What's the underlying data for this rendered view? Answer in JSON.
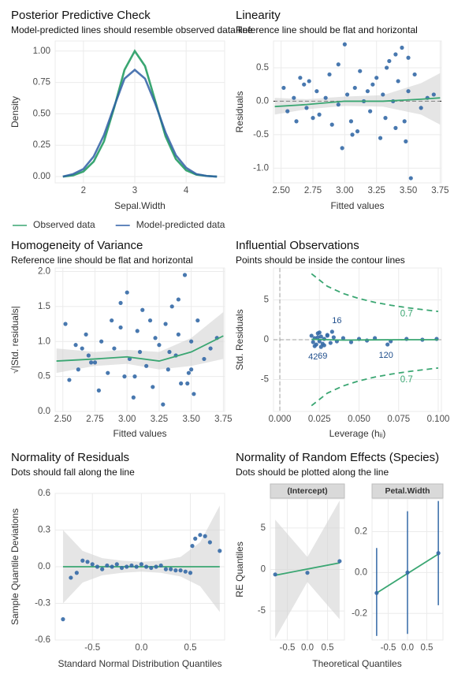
{
  "chart_data": [
    {
      "type": "line",
      "title": "Posterior Predictive Check",
      "subtitle": "Model-predicted lines should resemble observed data line",
      "x_label": "Sepal.Width",
      "y_label": "Density",
      "legend": "bottom",
      "grid": true,
      "xlim": [
        1.45,
        4.75
      ],
      "xticks": [
        2,
        3,
        4
      ],
      "ylim": [
        -0.05,
        1.08
      ],
      "yticks": [
        {
          "value": 0,
          "label": "0.00"
        },
        {
          "value": 0.25,
          "label": "0.25"
        },
        {
          "value": 0.5,
          "label": "0.50"
        },
        {
          "value": 0.75,
          "label": "0.75"
        },
        {
          "value": 1,
          "label": "1.00"
        }
      ],
      "x": [
        1.6,
        1.8,
        2.0,
        2.2,
        2.4,
        2.6,
        2.8,
        3.0,
        3.2,
        3.4,
        3.6,
        3.8,
        4.0,
        4.2,
        4.4,
        4.6
      ],
      "series": [
        {
          "name": "Observed data",
          "type": "line",
          "color": "#3aa672",
          "values": [
            0.0,
            0.01,
            0.04,
            0.12,
            0.28,
            0.55,
            0.85,
            1.0,
            0.88,
            0.6,
            0.32,
            0.14,
            0.05,
            0.015,
            0.005,
            0.0
          ]
        },
        {
          "name": "Model-predicted data",
          "type": "line",
          "color": "#2f5fa5",
          "values": [
            0.0,
            0.02,
            0.06,
            0.16,
            0.33,
            0.56,
            0.78,
            0.85,
            0.78,
            0.58,
            0.35,
            0.17,
            0.07,
            0.02,
            0.005,
            0.0
          ]
        }
      ]
    },
    {
      "type": "scatter",
      "title": "Linearity",
      "subtitle": "Reference line should be flat and horizontal",
      "x_label": "Fitted values",
      "y_label": "Residuals",
      "grid": true,
      "xlim": [
        2.44,
        3.76
      ],
      "xticks": [
        {
          "value": 2.5,
          "label": "2.50"
        },
        2.75,
        {
          "value": 3,
          "label": "3.00"
        },
        3.25,
        {
          "value": 3.5,
          "label": "3.50"
        },
        3.75
      ],
      "ylim": [
        -1.22,
        0.9
      ],
      "yticks": [
        {
          "value": -1,
          "label": "-1.0"
        },
        -0.5,
        {
          "value": 0,
          "label": "0.0"
        },
        0.5
      ],
      "ref_lines": [
        {
          "axis": "y",
          "value": 0,
          "color": "#000000"
        }
      ],
      "series": [
        {
          "type": "band",
          "color": "#d4d4d4",
          "x": [
            2.45,
            2.7,
            3.0,
            3.3,
            3.6,
            3.75
          ],
          "lower": [
            -0.2,
            -0.12,
            -0.07,
            -0.08,
            -0.2,
            -0.35
          ],
          "upper": [
            0.05,
            0.03,
            0.07,
            0.09,
            0.27,
            0.42
          ]
        },
        {
          "type": "points",
          "color": "#3469a6",
          "x": [
            2.52,
            2.55,
            2.6,
            2.62,
            2.68,
            2.7,
            2.72,
            2.78,
            2.8,
            2.85,
            2.88,
            2.9,
            2.95,
            2.98,
            3.0,
            3.02,
            3.05,
            3.08,
            3.1,
            3.12,
            3.15,
            3.2,
            3.22,
            3.25,
            3.28,
            3.3,
            3.32,
            3.35,
            3.38,
            3.4,
            3.42,
            3.45,
            3.48,
            3.5,
            3.52,
            3.55,
            3.6,
            3.65,
            3.7,
            2.95,
            3.06,
            3.4,
            3.33,
            3.47,
            2.75,
            2.65,
            3.18,
            3.5
          ],
          "values": [
            0.2,
            -0.15,
            0.05,
            -0.3,
            0.25,
            -0.1,
            0.3,
            0.15,
            -0.2,
            0.05,
            0.4,
            -0.35,
            0.55,
            -0.7,
            0.85,
            0.1,
            -0.3,
            0.2,
            -0.45,
            0.45,
            0.0,
            -0.15,
            0.25,
            0.35,
            -0.55,
            0.1,
            -0.25,
            0.6,
            0.0,
            -0.4,
            0.3,
            0.8,
            -0.6,
            0.15,
            -1.15,
            0.4,
            -0.1,
            0.05,
            0.1,
            -0.05,
            -0.5,
            0.7,
            0.5,
            -0.3,
            -0.25,
            0.35,
            0.15,
            0.65
          ]
        },
        {
          "type": "line",
          "color": "#3aa672",
          "x": [
            2.45,
            2.7,
            3.0,
            3.3,
            3.6,
            3.75
          ],
          "values": [
            -0.08,
            -0.05,
            0.0,
            0.0,
            0.03,
            0.05
          ]
        }
      ]
    },
    {
      "type": "scatter",
      "title": "Homogeneity of Variance",
      "subtitle": "Reference line should be flat and horizontal",
      "x_label": "Fitted values",
      "y_label": "√|Std. residuals|",
      "grid": true,
      "xlim": [
        2.44,
        3.76
      ],
      "xticks": [
        {
          "value": 2.5,
          "label": "2.50"
        },
        2.75,
        {
          "value": 3,
          "label": "3.00"
        },
        3.25,
        {
          "value": 3.5,
          "label": "3.50"
        },
        3.75
      ],
      "ylim": [
        0,
        2.05
      ],
      "yticks": [
        {
          "value": 0,
          "label": "0.0"
        },
        0.5,
        {
          "value": 1,
          "label": "1.0"
        },
        1.5,
        {
          "value": 2,
          "label": "2.0"
        }
      ],
      "series": [
        {
          "type": "band",
          "color": "#d4d4d4",
          "x": [
            2.45,
            2.75,
            3.0,
            3.25,
            3.5,
            3.75
          ],
          "lower": [
            0.55,
            0.65,
            0.68,
            0.6,
            0.65,
            0.75
          ],
          "upper": [
            0.9,
            0.85,
            0.88,
            0.85,
            1.05,
            1.42
          ]
        },
        {
          "type": "points",
          "color": "#3469a6",
          "x": [
            2.52,
            2.55,
            2.6,
            2.62,
            2.68,
            2.7,
            2.72,
            2.78,
            2.8,
            2.85,
            2.88,
            2.9,
            2.95,
            2.98,
            3.0,
            3.02,
            3.05,
            3.08,
            3.1,
            3.12,
            3.15,
            3.2,
            3.22,
            3.25,
            3.28,
            3.3,
            3.32,
            3.35,
            3.38,
            3.4,
            3.42,
            3.45,
            3.48,
            3.5,
            3.52,
            3.55,
            3.6,
            3.65,
            3.7,
            2.95,
            3.06,
            3.4,
            3.33,
            3.47,
            2.75,
            2.65,
            3.18,
            3.5
          ],
          "values": [
            1.25,
            0.45,
            0.95,
            0.6,
            1.1,
            0.8,
            0.7,
            0.3,
            1.0,
            0.55,
            1.3,
            0.9,
            1.55,
            0.5,
            1.7,
            0.75,
            0.2,
            1.15,
            0.85,
            1.45,
            0.65,
            0.35,
            1.05,
            0.95,
            0.1,
            1.25,
            0.6,
            1.5,
            0.8,
            1.1,
            0.4,
            1.95,
            0.55,
            1.0,
            0.25,
            1.3,
            0.75,
            0.9,
            1.05,
            1.2,
            0.5,
            1.6,
            0.85,
            0.4,
            0.7,
            0.9,
            1.3,
            0.6
          ]
        },
        {
          "type": "line",
          "color": "#3aa672",
          "x": [
            2.45,
            2.75,
            3.0,
            3.25,
            3.5,
            3.75
          ],
          "values": [
            0.72,
            0.75,
            0.78,
            0.72,
            0.85,
            1.08
          ]
        }
      ]
    },
    {
      "type": "scatter",
      "title": "Influential Observations",
      "subtitle": "Points should be inside the contour lines",
      "x_label": "Leverage (hᵢᵢ)",
      "y_label": "Std. Residuals",
      "grid": true,
      "xlim": [
        -0.004,
        0.102
      ],
      "xticks": [
        {
          "value": 0,
          "label": "0.000"
        },
        0.025,
        {
          "value": 0.05,
          "label": "0.050"
        },
        0.075,
        {
          "value": 0.1,
          "label": "0.100"
        }
      ],
      "ylim": [
        -9,
        9
      ],
      "yticks": [
        -5,
        0,
        5
      ],
      "ref_lines": [
        {
          "axis": "x",
          "value": 0,
          "color": "#a0a0a0"
        },
        {
          "axis": "y",
          "value": 0,
          "color": "#a0a0a0"
        }
      ],
      "series": [
        {
          "type": "dashed",
          "color": "#3aa672",
          "label": "0.7",
          "x": [
            0.02,
            0.03,
            0.04,
            0.05,
            0.06,
            0.07,
            0.08,
            0.09,
            0.1
          ],
          "values": [
            8.28,
            6.7,
            5.8,
            5.16,
            4.69,
            4.33,
            4.03,
            3.78,
            3.55
          ]
        },
        {
          "type": "dashed",
          "color": "#3aa672",
          "label": "0.7",
          "x": [
            0.02,
            0.03,
            0.04,
            0.05,
            0.06,
            0.07,
            0.08,
            0.09,
            0.1
          ],
          "values": [
            -8.28,
            -6.7,
            -5.8,
            -5.16,
            -4.69,
            -4.33,
            -4.03,
            -3.78,
            -3.55
          ]
        },
        {
          "type": "points",
          "color": "#3469a6",
          "x": [
            0.02,
            0.021,
            0.022,
            0.023,
            0.024,
            0.025,
            0.026,
            0.027,
            0.028,
            0.03,
            0.032,
            0.034,
            0.036,
            0.04,
            0.045,
            0.05,
            0.055,
            0.06,
            0.07,
            0.08,
            0.09,
            0.099,
            0.022,
            0.025,
            0.028,
            0.03,
            0.033,
            0.026,
            0.068,
            0.024
          ],
          "values": [
            0.5,
            -0.3,
            0.2,
            -0.6,
            0.8,
            -0.2,
            0.4,
            -0.5,
            0.1,
            0.6,
            -0.4,
            0.3,
            -0.2,
            0.2,
            -0.3,
            0.1,
            -0.1,
            0.2,
            -0.2,
            0.1,
            0.0,
            0.1,
            -0.8,
            0.9,
            -0.7,
            0.5,
            1.0,
            -0.9,
            -0.6,
            0.3
          ],
          "labels": [
            null,
            null,
            null,
            null,
            null,
            null,
            null,
            null,
            null,
            null,
            null,
            null,
            null,
            null,
            null,
            null,
            null,
            null,
            null,
            null,
            null,
            null,
            "42",
            null,
            "69",
            null,
            "16",
            null,
            "120",
            null
          ]
        },
        {
          "type": "line",
          "color": "#3aa672",
          "x": [
            0.02,
            0.04,
            0.06,
            0.08,
            0.1
          ],
          "values": [
            0.05,
            -0.05,
            -0.02,
            0.0,
            0.0
          ]
        }
      ]
    },
    {
      "type": "scatter",
      "title": "Normality of Residuals",
      "subtitle": "Dots should fall along the line",
      "x_label": "Standard Normal Distribution Quantiles",
      "y_label": "Sample Quantile Deviations",
      "grid": true,
      "xlim": [
        -0.88,
        0.85
      ],
      "xticks": [
        -0.5,
        {
          "value": 0,
          "label": "0.0"
        },
        0.5
      ],
      "ylim": [
        -0.6,
        0.6
      ],
      "yticks": [
        -0.6,
        -0.3,
        {
          "value": 0,
          "label": "0.0"
        },
        0.3,
        0.6
      ],
      "series": [
        {
          "type": "band",
          "color": "#d4d4d4",
          "x": [
            -0.8,
            -0.6,
            -0.4,
            -0.2,
            0,
            0.2,
            0.4,
            0.6,
            0.8
          ],
          "lower": [
            -0.3,
            -0.13,
            -0.07,
            -0.05,
            -0.04,
            -0.05,
            -0.08,
            -0.16,
            -0.37
          ],
          "upper": [
            0.3,
            0.13,
            0.07,
            0.05,
            0.04,
            0.05,
            0.08,
            0.2,
            0.5
          ]
        },
        {
          "type": "line",
          "color": "#3aa672",
          "x": [
            -0.8,
            0.8
          ],
          "values": [
            0,
            0
          ]
        },
        {
          "type": "points",
          "color": "#3469a6",
          "x": [
            -0.8,
            -0.72,
            -0.66,
            -0.6,
            -0.55,
            -0.5,
            -0.45,
            -0.4,
            -0.35,
            -0.3,
            -0.25,
            -0.2,
            -0.15,
            -0.1,
            -0.05,
            0,
            0.05,
            0.1,
            0.15,
            0.2,
            0.25,
            0.3,
            0.35,
            0.4,
            0.45,
            0.5,
            0.52,
            0.55,
            0.6,
            0.65,
            0.7,
            0.8
          ],
          "values": [
            -0.43,
            -0.09,
            -0.05,
            0.05,
            0.04,
            0.02,
            0.0,
            -0.02,
            0.01,
            0.0,
            0.02,
            -0.01,
            0.0,
            0.01,
            0.0,
            0.02,
            0.0,
            -0.01,
            0.0,
            0.01,
            -0.02,
            -0.02,
            -0.03,
            -0.03,
            -0.04,
            -0.05,
            0.17,
            0.23,
            0.26,
            0.25,
            0.2,
            0.13
          ]
        }
      ]
    },
    {
      "type": "facet-scatter",
      "title": "Normality of Random Effects (Species)",
      "subtitle": "Dots should be plotted along the line",
      "x_label": "Theoretical Quantiles",
      "y_label": "RE Quantiles",
      "grid": true,
      "facets": [
        {
          "strip": "(Intercept)",
          "xlim": [
            -0.92,
            0.92
          ],
          "xticks": [
            -0.5,
            {
              "value": 0,
              "label": "0.0"
            },
            0.5
          ],
          "ylim": [
            -8.5,
            8.5
          ],
          "yticks": [
            -5,
            0,
            5
          ],
          "series": [
            {
              "type": "band",
              "color": "#d4d4d4",
              "x": [
                -0.8,
                0,
                0.8
              ],
              "lower": [
                -8.3,
                -1.5,
                -6.0
              ],
              "upper": [
                6.0,
                1.5,
                8.3
              ]
            },
            {
              "type": "line",
              "color": "#3aa672",
              "x": [
                -0.8,
                0.8
              ],
              "values": [
                -0.7,
                0.8
              ]
            },
            {
              "type": "points",
              "color": "#3469a6",
              "x": [
                -0.8,
                0,
                0.8
              ],
              "values": [
                -0.6,
                -0.4,
                1.0
              ]
            }
          ]
        },
        {
          "strip": "Petal.Width",
          "xlim": [
            -0.92,
            0.92
          ],
          "xticks": [
            -0.5,
            {
              "value": 0,
              "label": "0.0"
            },
            0.5
          ],
          "ylim": [
            -0.33,
            0.36
          ],
          "yticks": [
            -0.2,
            {
              "value": 0,
              "label": "0.0"
            },
            0.2
          ],
          "series": [
            {
              "type": "line",
              "color": "#3aa672",
              "x": [
                -0.8,
                0.8
              ],
              "values": [
                -0.1,
                0.09
              ]
            },
            {
              "type": "points",
              "color": "#3469a6",
              "x": [
                -0.8,
                0,
                0.8
              ],
              "values": [
                -0.1,
                0.0,
                0.095
              ],
              "lower": [
                -0.31,
                -0.3,
                -0.16
              ],
              "upper": [
                0.12,
                0.3,
                0.35
              ]
            }
          ]
        }
      ]
    }
  ]
}
